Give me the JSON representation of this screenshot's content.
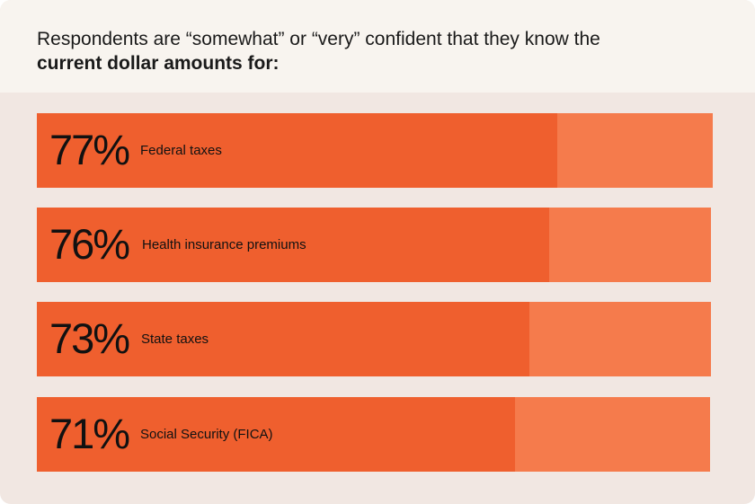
{
  "title": {
    "prefix": "Respondents are “somewhat” or “very” confident that they know the ",
    "bold": "current dollar amounts for:"
  },
  "colors": {
    "fill": "#ef5f2e",
    "track": "#f57b4c",
    "header_bg": "#f8f4ef",
    "chart_bg": "#f1e7e2",
    "text": "#111111"
  },
  "chart_data": {
    "type": "bar",
    "orientation": "horizontal",
    "categories": [
      "Federal taxes",
      "Health insurance premiums",
      "State taxes",
      "Social Security (FICA)"
    ],
    "values": [
      77,
      76,
      73,
      71
    ],
    "value_labels": [
      "77%",
      "76%",
      "73%",
      "71%"
    ],
    "xlim": [
      0,
      100
    ],
    "grid": false
  }
}
